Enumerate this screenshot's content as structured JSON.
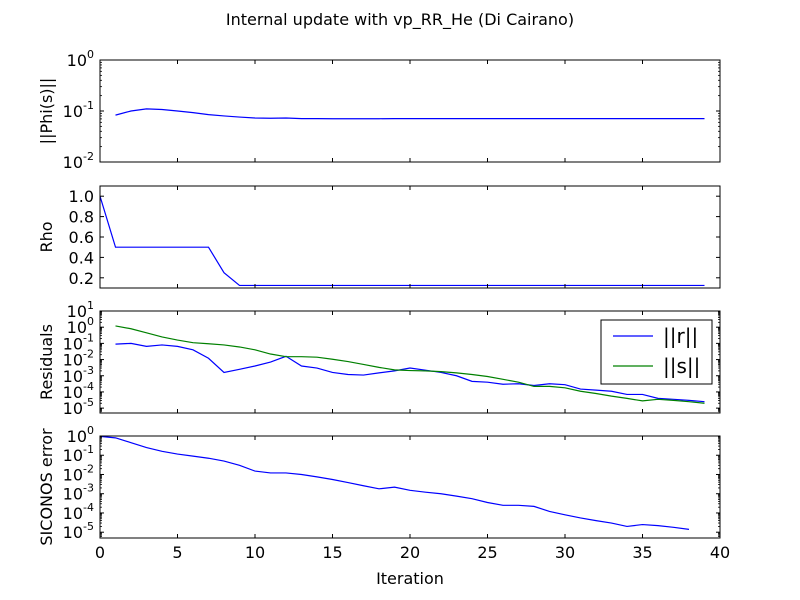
{
  "figure": {
    "title": "Internal update with vp_RR_He (Di Cairano)",
    "xlabel": "Iteration"
  },
  "colors": {
    "blue": "#0000ff",
    "green": "#008000",
    "axes": "#000000"
  },
  "chart_data": [
    {
      "type": "line",
      "ylabel": "||Phi(s)||",
      "yscale": "log",
      "xlim": [
        0,
        40
      ],
      "ylim": [
        0.01,
        1
      ],
      "yticks": [
        0.01,
        0.1,
        1
      ],
      "ytick_labels": [
        {
          "base": "10",
          "exp": "-2"
        },
        {
          "base": "10",
          "exp": "-1"
        },
        {
          "base": "10",
          "exp": "0"
        }
      ],
      "x_tick_labels_visible": false,
      "series": [
        {
          "color": "blue",
          "x": [
            1,
            2,
            3,
            4,
            5,
            6,
            7,
            8,
            9,
            10,
            11,
            12,
            13,
            14,
            15,
            16,
            17,
            18,
            19,
            20,
            21,
            22,
            23,
            24,
            25,
            26,
            27,
            28,
            29,
            30,
            31,
            32,
            33,
            34,
            35,
            36,
            37,
            38,
            39
          ],
          "y": [
            0.083,
            0.1,
            0.11,
            0.107,
            0.1,
            0.093,
            0.085,
            0.08,
            0.076,
            0.073,
            0.072,
            0.073,
            0.071,
            0.071,
            0.0705,
            0.0705,
            0.0705,
            0.0705,
            0.071,
            0.071,
            0.071,
            0.071,
            0.071,
            0.071,
            0.071,
            0.071,
            0.071,
            0.071,
            0.071,
            0.071,
            0.071,
            0.071,
            0.071,
            0.071,
            0.071,
            0.071,
            0.071,
            0.071,
            0.071
          ]
        }
      ]
    },
    {
      "type": "line",
      "ylabel": "Rho",
      "yscale": "linear",
      "xlim": [
        0,
        40
      ],
      "ylim": [
        0.1,
        1.1
      ],
      "yticks": [
        0.2,
        0.4,
        0.6,
        0.8,
        1.0
      ],
      "ytick_labels": [
        {
          "base": "0.2"
        },
        {
          "base": "0.4"
        },
        {
          "base": "0.6"
        },
        {
          "base": "0.8"
        },
        {
          "base": "1.0"
        }
      ],
      "x_tick_labels_visible": false,
      "series": [
        {
          "color": "blue",
          "x": [
            0,
            1,
            2,
            3,
            4,
            5,
            6,
            7,
            8,
            9,
            10,
            11,
            12,
            13,
            14,
            15,
            16,
            17,
            18,
            19,
            20,
            21,
            22,
            23,
            24,
            25,
            26,
            27,
            28,
            29,
            30,
            31,
            32,
            33,
            34,
            35,
            36,
            37,
            38,
            39
          ],
          "y": [
            1.0,
            0.5,
            0.5,
            0.5,
            0.5,
            0.5,
            0.5,
            0.5,
            0.25,
            0.125,
            0.125,
            0.125,
            0.125,
            0.125,
            0.125,
            0.125,
            0.125,
            0.125,
            0.125,
            0.125,
            0.125,
            0.125,
            0.125,
            0.125,
            0.125,
            0.125,
            0.125,
            0.125,
            0.125,
            0.125,
            0.125,
            0.125,
            0.125,
            0.125,
            0.125,
            0.125,
            0.125,
            0.125,
            0.125,
            0.125
          ]
        }
      ]
    },
    {
      "type": "line",
      "ylabel": "Residuals",
      "yscale": "log",
      "xlim": [
        0,
        40
      ],
      "ylim": [
        5e-06,
        10
      ],
      "yticks": [
        1e-05,
        0.0001,
        0.001,
        0.01,
        0.1,
        1,
        10
      ],
      "ytick_labels": [
        {
          "base": "10",
          "exp": "-5"
        },
        {
          "base": "10",
          "exp": "-4"
        },
        {
          "base": "10",
          "exp": "-3"
        },
        {
          "base": "10",
          "exp": "-2"
        },
        {
          "base": "10",
          "exp": "-1"
        },
        {
          "base": "10",
          "exp": "0"
        },
        {
          "base": "10",
          "exp": "1"
        }
      ],
      "x_tick_labels_visible": false,
      "legend": {
        "placement": "upper right"
      },
      "series": [
        {
          "name": "||r||",
          "color": "blue",
          "x": [
            1,
            2,
            3,
            4,
            5,
            6,
            7,
            8,
            9,
            10,
            11,
            12,
            13,
            14,
            15,
            16,
            17,
            18,
            19,
            20,
            21,
            22,
            23,
            24,
            25,
            26,
            27,
            28,
            29,
            30,
            31,
            32,
            33,
            34,
            35,
            36,
            37,
            38,
            39
          ],
          "y": [
            0.09,
            0.1,
            0.065,
            0.08,
            0.065,
            0.04,
            0.012,
            0.0016,
            0.0025,
            0.004,
            0.007,
            0.016,
            0.004,
            0.003,
            0.0016,
            0.0012,
            0.0011,
            0.0015,
            0.002,
            0.003,
            0.0022,
            0.0016,
            0.001,
            0.00045,
            0.0004,
            0.0003,
            0.00032,
            0.00025,
            0.00032,
            0.00028,
            0.00015,
            0.00013,
            0.00011,
            7e-05,
            7e-05,
            4e-05,
            3.5e-05,
            3e-05,
            2.5e-05
          ]
        },
        {
          "name": "||s||",
          "color": "green",
          "x": [
            1,
            2,
            3,
            4,
            5,
            6,
            7,
            8,
            9,
            10,
            11,
            12,
            13,
            14,
            15,
            16,
            17,
            18,
            19,
            20,
            21,
            22,
            23,
            24,
            25,
            26,
            27,
            28,
            29,
            30,
            31,
            32,
            33,
            34,
            35,
            36,
            37,
            38,
            39
          ],
          "y": [
            1.2,
            0.8,
            0.45,
            0.25,
            0.16,
            0.11,
            0.095,
            0.08,
            0.06,
            0.04,
            0.022,
            0.015,
            0.015,
            0.014,
            0.0105,
            0.0075,
            0.005,
            0.0033,
            0.0023,
            0.0021,
            0.002,
            0.0018,
            0.0015,
            0.0012,
            0.0009,
            0.0006,
            0.0004,
            0.00022,
            0.00022,
            0.00018,
            0.00011,
            8e-05,
            5.5e-05,
            4e-05,
            2.8e-05,
            3.5e-05,
            3e-05,
            2.5e-05,
            2e-05
          ]
        }
      ]
    },
    {
      "type": "line",
      "ylabel": "SICONOS error",
      "yscale": "log",
      "xlim": [
        0,
        40
      ],
      "ylim": [
        5e-06,
        1
      ],
      "yticks": [
        1e-05,
        0.0001,
        0.001,
        0.01,
        0.1,
        1
      ],
      "ytick_labels": [
        {
          "base": "10",
          "exp": "-5"
        },
        {
          "base": "10",
          "exp": "-4"
        },
        {
          "base": "10",
          "exp": "-3"
        },
        {
          "base": "10",
          "exp": "-2"
        },
        {
          "base": "10",
          "exp": "-1"
        },
        {
          "base": "10",
          "exp": "0"
        }
      ],
      "x_tick_labels_visible": true,
      "xticks": [
        0,
        5,
        10,
        15,
        20,
        25,
        30,
        35,
        40
      ],
      "xtick_labels": [
        "0",
        "5",
        "10",
        "15",
        "20",
        "25",
        "30",
        "35",
        "40"
      ],
      "series": [
        {
          "color": "blue",
          "x": [
            0,
            1,
            2,
            3,
            4,
            5,
            6,
            7,
            8,
            9,
            10,
            11,
            12,
            13,
            14,
            15,
            16,
            17,
            18,
            19,
            20,
            21,
            22,
            23,
            24,
            25,
            26,
            27,
            28,
            29,
            30,
            31,
            32,
            33,
            34,
            35,
            36,
            37,
            38
          ],
          "y": [
            0.95,
            0.8,
            0.45,
            0.25,
            0.16,
            0.115,
            0.09,
            0.07,
            0.05,
            0.03,
            0.015,
            0.012,
            0.012,
            0.01,
            0.0075,
            0.0055,
            0.0038,
            0.0026,
            0.0018,
            0.0022,
            0.0015,
            0.0012,
            0.001,
            0.00075,
            0.00055,
            0.00035,
            0.00025,
            0.00025,
            0.00022,
            0.00012,
            8e-05,
            5.5e-05,
            4e-05,
            3e-05,
            2e-05,
            2.5e-05,
            2.2e-05,
            1.8e-05,
            1.4e-05
          ]
        }
      ]
    }
  ]
}
